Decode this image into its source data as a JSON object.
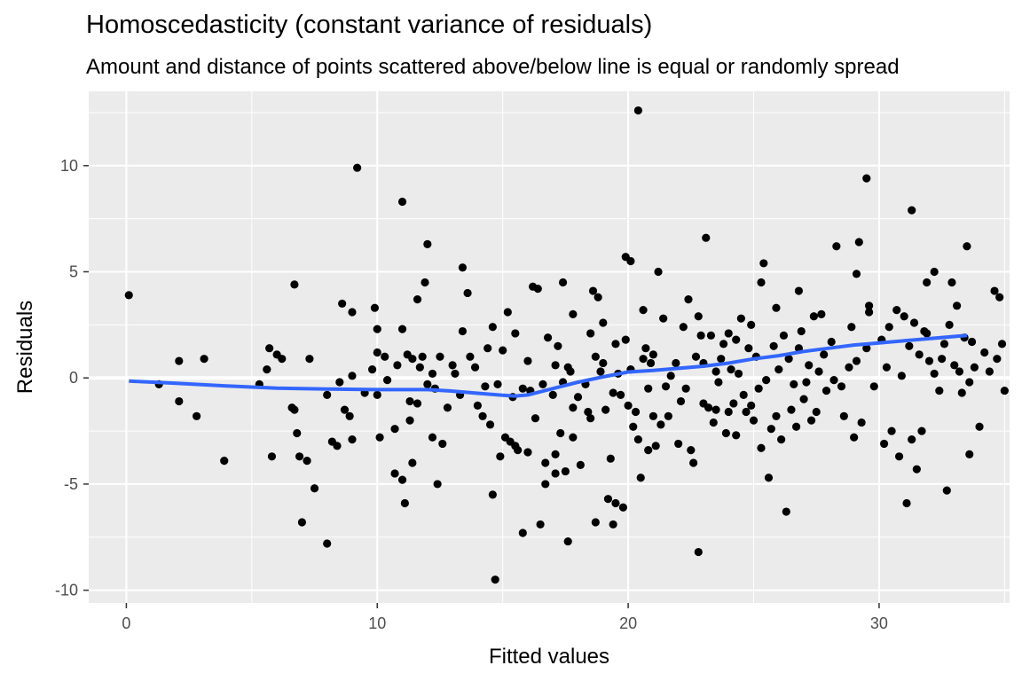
{
  "chart_data": {
    "type": "scatter",
    "title": "Homoscedasticity (constant variance of residuals)",
    "subtitle": "Amount and distance of points scattered above/below line is equal or randomly spread",
    "xlabel": "Fitted values",
    "ylabel": "Residuals",
    "xlim": [
      -1.5,
      35.2
    ],
    "ylim": [
      -10.6,
      13.5
    ],
    "xticks": [
      0,
      10,
      20,
      30
    ],
    "yticks": [
      -10,
      -5,
      0,
      5,
      10
    ],
    "grid": true,
    "reference_line_y": 0,
    "point_color": "#000000",
    "smooth_color": "#3366FF",
    "panel_background": "#EBEBEB",
    "points": [
      [
        0.1,
        3.9
      ],
      [
        1.3,
        -0.3
      ],
      [
        2.1,
        0.8
      ],
      [
        2.1,
        -1.1
      ],
      [
        2.8,
        -1.8
      ],
      [
        3.1,
        0.9
      ],
      [
        3.9,
        -3.9
      ],
      [
        5.3,
        -0.3
      ],
      [
        5.6,
        0.4
      ],
      [
        5.7,
        1.4
      ],
      [
        5.8,
        -3.7
      ],
      [
        6.0,
        1.1
      ],
      [
        6.2,
        0.9
      ],
      [
        6.6,
        -1.4
      ],
      [
        6.7,
        -1.5
      ],
      [
        6.7,
        4.4
      ],
      [
        6.8,
        -2.6
      ],
      [
        6.9,
        -3.7
      ],
      [
        7.0,
        -6.8
      ],
      [
        7.2,
        -3.9
      ],
      [
        7.3,
        0.9
      ],
      [
        7.5,
        -5.2
      ],
      [
        8.0,
        -7.8
      ],
      [
        8.0,
        -0.8
      ],
      [
        8.2,
        -3.0
      ],
      [
        8.4,
        -3.2
      ],
      [
        8.5,
        -0.2
      ],
      [
        8.6,
        3.5
      ],
      [
        8.7,
        -1.5
      ],
      [
        8.9,
        -1.8
      ],
      [
        9.0,
        0.1
      ],
      [
        9.0,
        3.1
      ],
      [
        9.0,
        -2.9
      ],
      [
        9.2,
        9.9
      ],
      [
        9.5,
        -0.7
      ],
      [
        9.8,
        0.4
      ],
      [
        9.9,
        3.3
      ],
      [
        10.0,
        2.3
      ],
      [
        10.0,
        1.2
      ],
      [
        10.0,
        -0.8
      ],
      [
        10.1,
        -2.8
      ],
      [
        10.3,
        1.0
      ],
      [
        10.4,
        -0.1
      ],
      [
        10.7,
        -2.4
      ],
      [
        10.7,
        -4.5
      ],
      [
        10.8,
        0.6
      ],
      [
        11.0,
        2.3
      ],
      [
        11.0,
        8.3
      ],
      [
        11.0,
        -4.8
      ],
      [
        11.1,
        -5.9
      ],
      [
        11.2,
        1.1
      ],
      [
        11.3,
        -1.1
      ],
      [
        11.3,
        -2.0
      ],
      [
        11.4,
        -4.0
      ],
      [
        11.4,
        0.9
      ],
      [
        11.6,
        3.7
      ],
      [
        11.6,
        -1.2
      ],
      [
        11.7,
        0.5
      ],
      [
        11.8,
        1.0
      ],
      [
        11.9,
        4.5
      ],
      [
        12.0,
        6.3
      ],
      [
        12.0,
        -0.3
      ],
      [
        12.2,
        -2.8
      ],
      [
        12.2,
        0.2
      ],
      [
        12.3,
        -0.5
      ],
      [
        12.4,
        -5.0
      ],
      [
        12.5,
        1.0
      ],
      [
        12.6,
        -3.1
      ],
      [
        12.8,
        -1.4
      ],
      [
        13.0,
        0.6
      ],
      [
        13.1,
        0.2
      ],
      [
        13.3,
        -0.8
      ],
      [
        13.4,
        2.2
      ],
      [
        13.4,
        5.2
      ],
      [
        13.6,
        4.0
      ],
      [
        13.7,
        1.0
      ],
      [
        13.9,
        0.5
      ],
      [
        14.0,
        -1.3
      ],
      [
        14.2,
        -1.8
      ],
      [
        14.3,
        -0.4
      ],
      [
        14.4,
        1.4
      ],
      [
        14.5,
        -2.2
      ],
      [
        14.6,
        -5.5
      ],
      [
        14.6,
        2.4
      ],
      [
        14.7,
        -9.5
      ],
      [
        14.8,
        -0.3
      ],
      [
        14.9,
        -3.7
      ],
      [
        15.0,
        1.3
      ],
      [
        15.1,
        -2.8
      ],
      [
        15.2,
        3.1
      ],
      [
        15.3,
        -3.0
      ],
      [
        15.4,
        -0.9
      ],
      [
        15.5,
        -3.2
      ],
      [
        15.5,
        2.1
      ],
      [
        15.6,
        -3.4
      ],
      [
        15.8,
        -7.3
      ],
      [
        15.8,
        -0.5
      ],
      [
        16.0,
        -3.5
      ],
      [
        16.0,
        0.8
      ],
      [
        16.1,
        -0.6
      ],
      [
        16.2,
        4.3
      ],
      [
        16.3,
        -1.9
      ],
      [
        16.4,
        4.2
      ],
      [
        16.5,
        -6.9
      ],
      [
        16.6,
        -0.3
      ],
      [
        16.7,
        -4.0
      ],
      [
        16.7,
        -5.0
      ],
      [
        16.8,
        1.9
      ],
      [
        17.0,
        -0.8
      ],
      [
        17.1,
        -3.6
      ],
      [
        17.1,
        -4.5
      ],
      [
        17.1,
        0.6
      ],
      [
        17.2,
        1.5
      ],
      [
        17.3,
        -2.6
      ],
      [
        17.4,
        -0.2
      ],
      [
        17.4,
        4.5
      ],
      [
        17.5,
        -4.4
      ],
      [
        17.6,
        -7.7
      ],
      [
        17.6,
        0.5
      ],
      [
        17.7,
        0.3
      ],
      [
        17.8,
        -1.4
      ],
      [
        17.8,
        3.0
      ],
      [
        17.8,
        -2.8
      ],
      [
        18.0,
        -0.9
      ],
      [
        18.1,
        -4.1
      ],
      [
        18.3,
        -0.3
      ],
      [
        18.4,
        -1.6
      ],
      [
        18.5,
        -1.9
      ],
      [
        18.5,
        2.1
      ],
      [
        18.6,
        4.1
      ],
      [
        18.7,
        -6.8
      ],
      [
        18.7,
        1.0
      ],
      [
        18.8,
        3.8
      ],
      [
        18.9,
        0.3
      ],
      [
        19.0,
        2.6
      ],
      [
        19.0,
        0.7
      ],
      [
        19.1,
        -1.5
      ],
      [
        19.2,
        -5.7
      ],
      [
        19.3,
        -3.8
      ],
      [
        19.4,
        -6.9
      ],
      [
        19.4,
        -0.7
      ],
      [
        19.5,
        -5.9
      ],
      [
        19.5,
        1.6
      ],
      [
        19.6,
        0.2
      ],
      [
        19.7,
        -0.8
      ],
      [
        19.8,
        -6.1
      ],
      [
        19.9,
        5.7
      ],
      [
        19.9,
        1.8
      ],
      [
        20.0,
        -1.3
      ],
      [
        20.1,
        0.4
      ],
      [
        20.1,
        5.5
      ],
      [
        20.2,
        -2.3
      ],
      [
        20.3,
        -1.6
      ],
      [
        20.4,
        -2.9
      ],
      [
        20.5,
        -4.7
      ],
      [
        20.6,
        0.9
      ],
      [
        20.6,
        3.2
      ],
      [
        20.7,
        1.4
      ],
      [
        20.8,
        -3.4
      ],
      [
        20.8,
        -0.5
      ],
      [
        20.9,
        0.7
      ],
      [
        21.0,
        1.1
      ],
      [
        21.0,
        -1.8
      ],
      [
        21.1,
        -3.2
      ],
      [
        21.2,
        5.0
      ],
      [
        21.3,
        -2.2
      ],
      [
        21.4,
        2.8
      ],
      [
        21.5,
        -0.4
      ],
      [
        21.6,
        -1.8
      ],
      [
        21.7,
        0.1
      ],
      [
        21.9,
        0.7
      ],
      [
        22.0,
        -3.1
      ],
      [
        22.1,
        -1.1
      ],
      [
        22.2,
        2.4
      ],
      [
        22.3,
        -0.5
      ],
      [
        22.4,
        3.7
      ],
      [
        22.5,
        -3.4
      ],
      [
        22.6,
        -4.0
      ],
      [
        22.7,
        1.0
      ],
      [
        22.8,
        2.9
      ],
      [
        22.8,
        -8.2
      ],
      [
        22.9,
        2.0
      ],
      [
        23.0,
        -1.2
      ],
      [
        23.0,
        0.7
      ],
      [
        23.1,
        6.6
      ],
      [
        23.2,
        -1.4
      ],
      [
        23.3,
        2.0
      ],
      [
        23.4,
        -2.1
      ],
      [
        23.5,
        0.3
      ],
      [
        23.5,
        -1.5
      ],
      [
        23.6,
        -0.2
      ],
      [
        23.7,
        0.9
      ],
      [
        23.8,
        1.6
      ],
      [
        23.9,
        -2.6
      ],
      [
        24.0,
        2.1
      ],
      [
        24.0,
        -1.6
      ],
      [
        24.1,
        0.4
      ],
      [
        24.2,
        -1.2
      ],
      [
        24.3,
        1.8
      ],
      [
        24.3,
        -2.7
      ],
      [
        24.4,
        0.2
      ],
      [
        24.5,
        2.8
      ],
      [
        24.6,
        -0.8
      ],
      [
        24.7,
        -1.6
      ],
      [
        24.8,
        1.4
      ],
      [
        24.9,
        2.5
      ],
      [
        24.9,
        -1.3
      ],
      [
        25.0,
        -2.0
      ],
      [
        25.1,
        1.0
      ],
      [
        25.2,
        -0.5
      ],
      [
        25.3,
        4.5
      ],
      [
        25.3,
        -3.3
      ],
      [
        25.4,
        5.4
      ],
      [
        25.5,
        -0.1
      ],
      [
        25.6,
        -4.7
      ],
      [
        25.7,
        -2.4
      ],
      [
        25.8,
        1.5
      ],
      [
        25.9,
        -1.8
      ],
      [
        26.0,
        0.4
      ],
      [
        26.1,
        -2.9
      ],
      [
        26.2,
        2.0
      ],
      [
        26.3,
        -6.3
      ],
      [
        26.4,
        0.9
      ],
      [
        26.5,
        -1.5
      ],
      [
        26.6,
        -0.3
      ],
      [
        26.7,
        -2.3
      ],
      [
        26.8,
        1.4
      ],
      [
        26.9,
        2.2
      ],
      [
        27.0,
        -1.0
      ],
      [
        27.1,
        -0.2
      ],
      [
        27.2,
        0.6
      ],
      [
        27.3,
        -2.0
      ],
      [
        27.4,
        2.9
      ],
      [
        27.5,
        -1.6
      ],
      [
        27.6,
        0.3
      ],
      [
        27.7,
        3.0
      ],
      [
        27.8,
        1.1
      ],
      [
        27.9,
        -0.6
      ],
      [
        28.1,
        1.7
      ],
      [
        28.2,
        -0.1
      ],
      [
        28.3,
        6.2
      ],
      [
        28.5,
        -0.4
      ],
      [
        28.6,
        -1.8
      ],
      [
        28.8,
        0.5
      ],
      [
        28.9,
        2.4
      ],
      [
        29.0,
        -2.8
      ],
      [
        29.1,
        0.8
      ],
      [
        29.2,
        6.4
      ],
      [
        29.3,
        -2.1
      ],
      [
        29.5,
        1.4
      ],
      [
        29.6,
        3.1
      ],
      [
        29.8,
        -0.4
      ],
      [
        30.1,
        1.8
      ],
      [
        30.2,
        -3.1
      ],
      [
        30.3,
        0.5
      ],
      [
        30.4,
        2.4
      ],
      [
        30.5,
        -2.5
      ],
      [
        30.7,
        3.2
      ],
      [
        30.8,
        -3.7
      ],
      [
        30.9,
        0.1
      ],
      [
        31.0,
        2.9
      ],
      [
        31.1,
        -5.9
      ],
      [
        31.2,
        1.5
      ],
      [
        31.3,
        7.9
      ],
      [
        31.3,
        -2.9
      ],
      [
        31.4,
        2.6
      ],
      [
        31.5,
        -4.3
      ],
      [
        31.6,
        1.1
      ],
      [
        31.7,
        -2.5
      ],
      [
        31.8,
        2.2
      ],
      [
        31.9,
        4.5
      ],
      [
        32.0,
        0.8
      ],
      [
        32.2,
        5.0
      ],
      [
        32.2,
        0.2
      ],
      [
        32.4,
        -0.6
      ],
      [
        32.5,
        0.9
      ],
      [
        32.6,
        1.6
      ],
      [
        32.7,
        -5.3
      ],
      [
        32.8,
        2.5
      ],
      [
        32.9,
        4.5
      ],
      [
        33.0,
        0.6
      ],
      [
        33.1,
        3.4
      ],
      [
        33.2,
        0.3
      ],
      [
        33.3,
        -0.7
      ],
      [
        33.4,
        1.9
      ],
      [
        33.5,
        6.2
      ],
      [
        33.6,
        -0.2
      ],
      [
        33.7,
        1.7
      ],
      [
        33.8,
        0.5
      ],
      [
        34.0,
        -2.3
      ],
      [
        34.2,
        1.2
      ],
      [
        34.4,
        0.3
      ],
      [
        34.6,
        4.1
      ],
      [
        34.7,
        0.9
      ],
      [
        34.8,
        3.8
      ],
      [
        34.9,
        1.6
      ],
      [
        35.0,
        -0.6
      ],
      [
        29.1,
        4.9
      ],
      [
        29.5,
        9.4
      ],
      [
        29.6,
        3.4
      ],
      [
        31.9,
        2.1
      ],
      [
        33.6,
        -3.6
      ],
      [
        20.4,
        12.6
      ],
      [
        26.8,
        4.1
      ],
      [
        25.9,
        3.3
      ]
    ],
    "smooth": [
      [
        0.1,
        -0.15
      ],
      [
        2.0,
        -0.25
      ],
      [
        4.0,
        -0.38
      ],
      [
        6.0,
        -0.48
      ],
      [
        8.0,
        -0.52
      ],
      [
        10.0,
        -0.55
      ],
      [
        12.0,
        -0.55
      ],
      [
        13.0,
        -0.62
      ],
      [
        14.0,
        -0.72
      ],
      [
        15.0,
        -0.82
      ],
      [
        15.5,
        -0.85
      ],
      [
        16.0,
        -0.8
      ],
      [
        17.0,
        -0.5
      ],
      [
        18.0,
        -0.2
      ],
      [
        19.0,
        0.05
      ],
      [
        20.0,
        0.28
      ],
      [
        21.0,
        0.35
      ],
      [
        22.0,
        0.45
      ],
      [
        23.0,
        0.55
      ],
      [
        24.0,
        0.7
      ],
      [
        25.0,
        0.9
      ],
      [
        26.0,
        1.05
      ],
      [
        27.0,
        1.25
      ],
      [
        28.0,
        1.4
      ],
      [
        29.0,
        1.55
      ],
      [
        30.0,
        1.65
      ],
      [
        31.0,
        1.75
      ],
      [
        32.0,
        1.85
      ],
      [
        33.5,
        2.0
      ]
    ]
  }
}
